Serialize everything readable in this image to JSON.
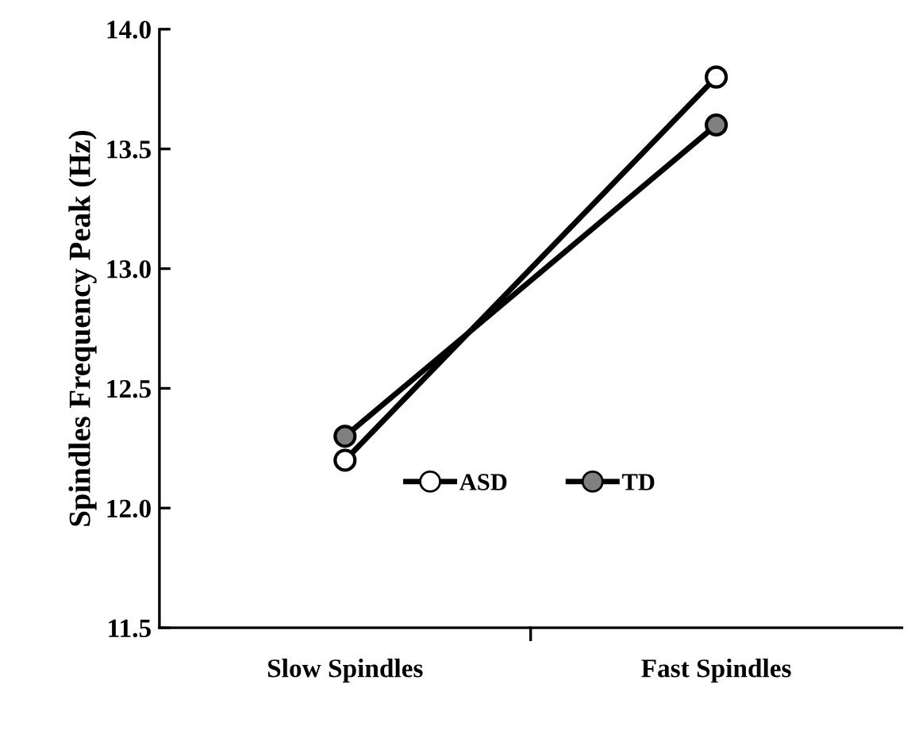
{
  "chart_data": {
    "type": "line",
    "ylabel": "Spindles Frequency Peak (Hz)",
    "categories": [
      "Slow Spindles",
      "Fast Spindles"
    ],
    "series": [
      {
        "name": "ASD",
        "color": "#ffffff",
        "values": [
          12.2,
          13.8
        ]
      },
      {
        "name": "TD",
        "color": "#808080",
        "values": [
          12.3,
          13.6
        ]
      }
    ],
    "ylim": [
      11.5,
      14.0
    ],
    "yticks": [
      {
        "value": 11.5,
        "label": "11.5"
      },
      {
        "value": 12.0,
        "label": "12.0"
      },
      {
        "value": 12.5,
        "label": "12.5"
      },
      {
        "value": 13.0,
        "label": "13.0"
      },
      {
        "value": 13.5,
        "label": "13.5"
      },
      {
        "value": 14.0,
        "label": "14.0"
      }
    ],
    "grid": false,
    "legend": "bottom",
    "marker": "circle",
    "line_style": "solid"
  }
}
